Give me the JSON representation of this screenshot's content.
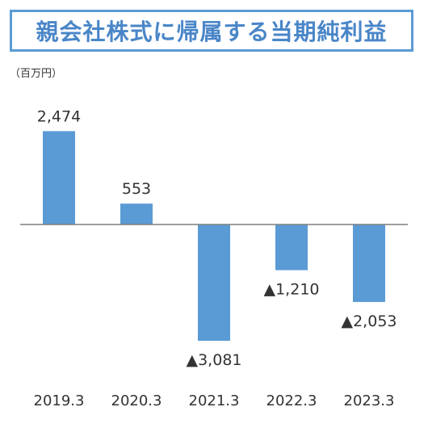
{
  "chart_data": {
    "type": "bar",
    "title": "親会社株式に帰属する当期純利益",
    "unit_label": "（百万円）",
    "categories": [
      "2019.3",
      "2020.3",
      "2021.3",
      "2022.3",
      "2023.3"
    ],
    "values": [
      2474,
      553,
      -3081,
      -1210,
      -2053
    ],
    "value_labels": [
      "2,474",
      "553",
      "▲3,081",
      "▲1,210",
      "▲2,053"
    ],
    "ylim": [
      -3500,
      3000
    ],
    "grid": false,
    "legend": "none",
    "colors": {
      "bar": "#5b9bd5",
      "axis": "#7f7f7f",
      "title": "#4a86c8"
    }
  }
}
